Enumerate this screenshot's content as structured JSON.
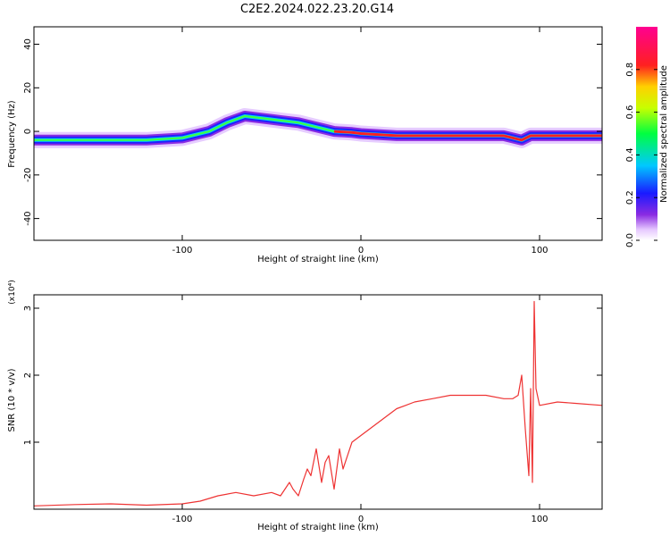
{
  "title": "C2E2.2024.022.23.20.G14",
  "chart_data": [
    {
      "type": "heatmap",
      "xlabel": "Height of straight line (km)",
      "ylabel": "Frequency (Hz)",
      "xlim": [
        -183,
        135
      ],
      "ylim": [
        -50,
        48
      ],
      "x_ticks": [
        -100,
        0,
        100
      ],
      "x_tick_labels": [
        "-100",
        "0",
        "100"
      ],
      "y_ticks": [
        -40,
        -20,
        0,
        20,
        40
      ],
      "y_tick_labels": [
        "-40",
        "-20",
        "0",
        "20",
        "40"
      ],
      "ridge": [
        {
          "x": -183,
          "y": -4
        },
        {
          "x": -160,
          "y": -4
        },
        {
          "x": -140,
          "y": -4
        },
        {
          "x": -120,
          "y": -4
        },
        {
          "x": -100,
          "y": -3
        },
        {
          "x": -85,
          "y": 0
        },
        {
          "x": -75,
          "y": 4
        },
        {
          "x": -65,
          "y": 7
        },
        {
          "x": -55,
          "y": 6
        },
        {
          "x": -45,
          "y": 5
        },
        {
          "x": -35,
          "y": 4
        },
        {
          "x": -25,
          "y": 2
        },
        {
          "x": -15,
          "y": 0
        },
        {
          "x": -5,
          "y": -0.5
        },
        {
          "x": 0,
          "y": -1
        },
        {
          "x": 20,
          "y": -2
        },
        {
          "x": 60,
          "y": -2
        },
        {
          "x": 80,
          "y": -2
        },
        {
          "x": 90,
          "y": -4
        },
        {
          "x": 95,
          "y": -2
        },
        {
          "x": 135,
          "y": -2
        }
      ],
      "colorbar": {
        "label": "Normalized spectral amplitude",
        "range": [
          0,
          1
        ],
        "ticks": [
          0.0,
          0.2,
          0.4,
          0.6,
          0.8
        ],
        "tick_labels": [
          "0.0",
          "0.2",
          "0.4",
          "0.6",
          "0.8"
        ]
      }
    },
    {
      "type": "line",
      "xlabel": "Height of straight line (km)",
      "ylabel": "SNR (10 * v/v)",
      "y_multiplier": "(x10⁴)",
      "xlim": [
        -183,
        135
      ],
      "ylim": [
        0,
        3.2
      ],
      "x_ticks": [
        -100,
        0,
        100
      ],
      "x_tick_labels": [
        "-100",
        "0",
        "100"
      ],
      "y_ticks": [
        1,
        2,
        3
      ],
      "y_tick_labels": [
        "1",
        "2",
        "3"
      ],
      "series": [
        {
          "name": "SNR",
          "color": "#ee3333",
          "x": [
            -183,
            -160,
            -140,
            -120,
            -100,
            -90,
            -80,
            -70,
            -60,
            -50,
            -45,
            -40,
            -38,
            -35,
            -32,
            -30,
            -28,
            -25,
            -22,
            -20,
            -18,
            -15,
            -12,
            -10,
            -5,
            0,
            5,
            10,
            15,
            20,
            25,
            30,
            40,
            50,
            60,
            70,
            80,
            85,
            88,
            90,
            92,
            94,
            95,
            96,
            97,
            98,
            100,
            110,
            120,
            135
          ],
          "y": [
            0.05,
            0.07,
            0.08,
            0.06,
            0.08,
            0.12,
            0.2,
            0.25,
            0.2,
            0.25,
            0.2,
            0.4,
            0.3,
            0.2,
            0.45,
            0.6,
            0.5,
            0.9,
            0.4,
            0.7,
            0.8,
            0.3,
            0.9,
            0.6,
            1.0,
            1.1,
            1.2,
            1.3,
            1.4,
            1.5,
            1.55,
            1.6,
            1.65,
            1.7,
            1.7,
            1.7,
            1.65,
            1.65,
            1.7,
            2.0,
            1.2,
            0.5,
            1.8,
            0.4,
            3.1,
            1.8,
            1.55,
            1.6,
            1.58,
            1.55
          ]
        }
      ]
    }
  ]
}
